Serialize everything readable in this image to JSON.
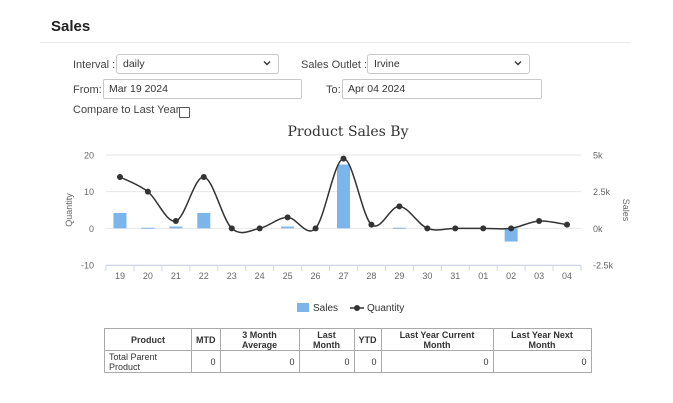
{
  "page": {
    "title": "Sales"
  },
  "filters": {
    "interval_label": "Interval :",
    "interval_value": "daily",
    "outlet_label": "Sales Outlet :",
    "outlet_value": "Irvine",
    "from_label": "From:",
    "from_value": "Mar 19 2024",
    "to_label": "To:",
    "to_value": "Apr 04 2024",
    "compare_label": "Compare to Last Year:",
    "compare_checked": false
  },
  "chart_data": {
    "type": "bar+line",
    "title": "Product Sales By",
    "categories": [
      "19",
      "20",
      "21",
      "22",
      "23",
      "24",
      "25",
      "26",
      "27",
      "28",
      "29",
      "30",
      "31",
      "01",
      "02",
      "03",
      "04"
    ],
    "series": [
      {
        "name": "Sales",
        "type": "bar",
        "axis": "right",
        "color": "#7cb5ec",
        "values": [
          1050,
          40,
          120,
          1050,
          0,
          0,
          120,
          0,
          4350,
          0,
          40,
          0,
          0,
          0,
          -900,
          0,
          0
        ]
      },
      {
        "name": "Quantity",
        "type": "line",
        "axis": "left",
        "color": "#333333",
        "values": [
          14,
          10,
          2,
          14,
          0,
          0,
          3,
          0,
          19,
          1,
          6,
          0,
          0,
          0,
          0,
          2,
          1
        ]
      }
    ],
    "y_left": {
      "label": "Quantity",
      "min": -10,
      "max": 20,
      "ticks": [
        "20",
        "10",
        "0",
        "-10"
      ]
    },
    "y_right": {
      "label": "Sales",
      "min": -2500,
      "max": 5000,
      "ticks": [
        "5k",
        "2.5k",
        "0k",
        "-2.5k"
      ]
    },
    "legend": {
      "position": "bottom",
      "items": [
        "Sales",
        "Quantity"
      ]
    }
  },
  "table": {
    "headers": [
      "Product",
      "MTD",
      "3 Month Average",
      "Last Month",
      "YTD",
      "Last Year Current Month",
      "Last Year Next Month"
    ],
    "rows": [
      [
        "Total Parent Product",
        "0",
        "0",
        "0",
        "0",
        "0",
        "0"
      ]
    ]
  },
  "colors": {
    "bar": "#7cb5ec",
    "line": "#333333",
    "grid": "#e6e6e6"
  },
  "icons": {
    "dropdown": "chevron-down-icon"
  }
}
